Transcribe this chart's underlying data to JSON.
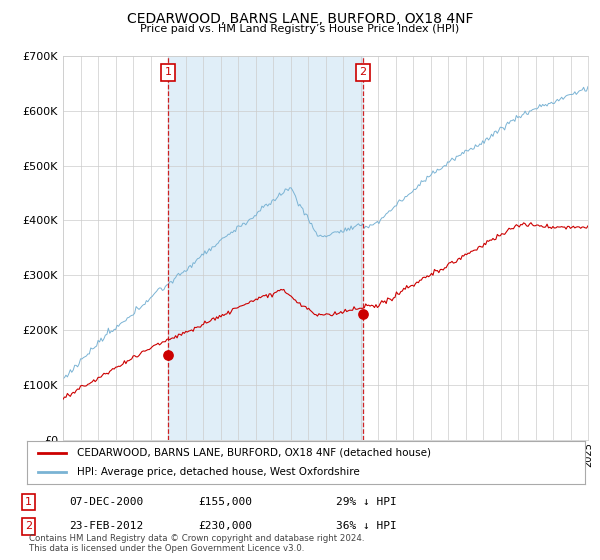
{
  "title": "CEDARWOOD, BARNS LANE, BURFORD, OX18 4NF",
  "subtitle": "Price paid vs. HM Land Registry’s House Price Index (HPI)",
  "legend_line1": "CEDARWOOD, BARNS LANE, BURFORD, OX18 4NF (detached house)",
  "legend_line2": "HPI: Average price, detached house, West Oxfordshire",
  "annotation1_label": "1",
  "annotation1_date": "07-DEC-2000",
  "annotation1_price": "£155,000",
  "annotation1_hpi": "29% ↓ HPI",
  "annotation2_label": "2",
  "annotation2_date": "23-FEB-2012",
  "annotation2_price": "£230,000",
  "annotation2_hpi": "36% ↓ HPI",
  "footer": "Contains HM Land Registry data © Crown copyright and database right 2024.\nThis data is licensed under the Open Government Licence v3.0.",
  "hpi_color": "#7ab3d4",
  "price_color": "#cc0000",
  "marker_color": "#cc0000",
  "shade_color": "#e0eef8",
  "background_color": "#ffffff",
  "grid_color": "#cccccc",
  "ylim": [
    0,
    700000
  ],
  "yticks": [
    0,
    100000,
    200000,
    300000,
    400000,
    500000,
    600000,
    700000
  ],
  "year_start": 1995,
  "year_end": 2025,
  "sale1_year": 2001.0,
  "sale1_value": 155000,
  "sale2_year": 2012.15,
  "sale2_value": 230000
}
